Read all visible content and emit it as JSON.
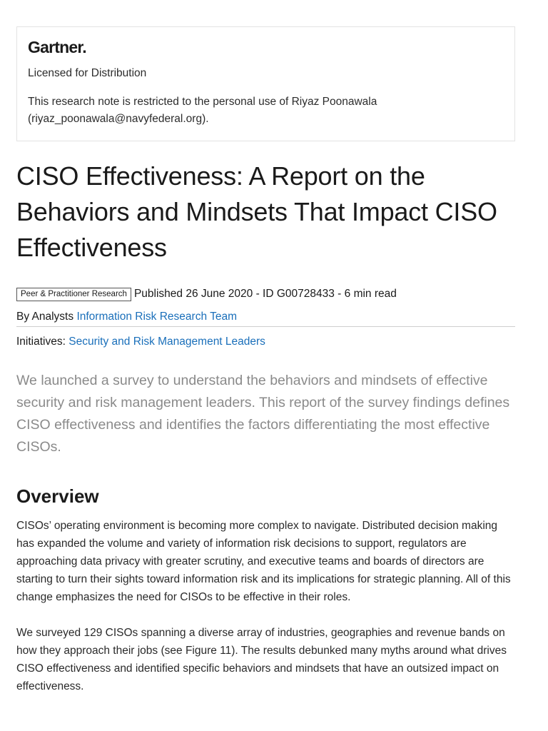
{
  "license_box": {
    "logo_text": "Gartner",
    "logo_dot": ".",
    "license_label": "Licensed for Distribution",
    "restriction_note": "This research note is restricted to the personal use of Riyaz Poonawala (riyaz_poonawala@navyfederal.org)."
  },
  "document": {
    "title": "CISO Effectiveness: A Report on the Behaviors and Mindsets That Impact CISO Effectiveness",
    "badge": "Peer & Practitioner Research",
    "published_info": "Published 26 June 2020 - ID G00728433 - 6 min read",
    "analysts_prefix": "By Analysts",
    "analysts_link": "Information Risk Research Team",
    "initiatives_prefix": "Initiatives:",
    "initiatives_link": "Security and Risk Management Leaders",
    "summary": "We launched a survey to understand the behaviors and mindsets of effective security and risk management leaders. This report of the survey findings defines CISO effectiveness and identifies the factors differentiating the most effective CISOs."
  },
  "overview": {
    "heading": "Overview",
    "paragraphs": [
      "CISOs’ operating environment is becoming more complex to navigate. Distributed decision making has expanded the volume and variety of information risk decisions to support, regulators are approaching data privacy with greater scrutiny, and executive teams and boards of directors are starting to turn their sights toward information risk and its implications for strategic planning. All of this change emphasizes the need for CISOs to be effective in their roles.",
      "We surveyed 129 CISOs spanning a diverse array of industries, geographies and revenue bands on how they approach their jobs (see Figure 11). The results debunked many myths around what drives CISO effectiveness and identified specific behaviors and mindsets that have an outsized impact on effectiveness."
    ]
  }
}
